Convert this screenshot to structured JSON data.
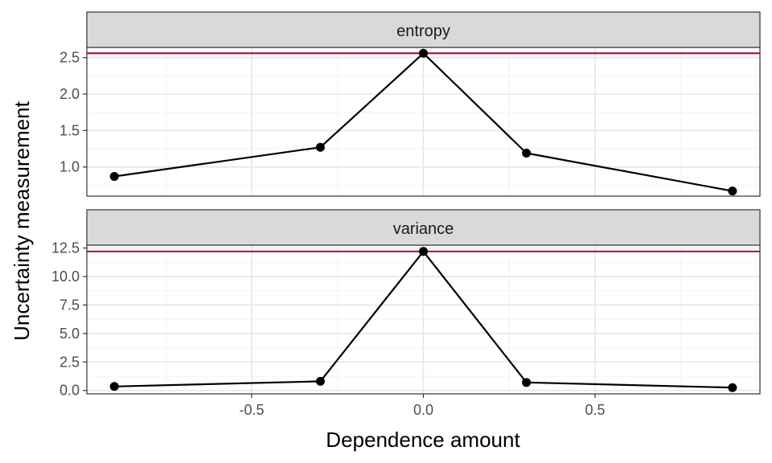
{
  "chart_data": {
    "type": "line",
    "xlabel": "Dependence amount",
    "ylabel": "Uncertainty measurement",
    "xlim": [
      -0.98,
      0.98
    ],
    "x_ticks": [
      -0.5,
      0.0,
      0.5
    ],
    "x_tick_labels": [
      "-0.5",
      "0.0",
      "0.5"
    ],
    "grid": true,
    "colors": {
      "line": "#000000",
      "point": "#000000",
      "reference_line": "#a8144f",
      "strip_fill": "#d9d9d9",
      "grid_major": "#e6e6e6",
      "grid_minor": "#f2f2f2",
      "panel_border": "#333333"
    },
    "panels": [
      {
        "strip_label": "entropy",
        "x": [
          -0.9,
          -0.3,
          0.0,
          0.3,
          0.9
        ],
        "y": [
          0.87,
          1.27,
          2.56,
          1.19,
          0.67
        ],
        "reference_y": 2.56,
        "ylim": [
          0.6,
          2.64
        ],
        "y_ticks": [
          1.0,
          1.5,
          2.0,
          2.5
        ],
        "y_tick_labels": [
          "1.0",
          "1.5",
          "2.0",
          "2.5"
        ]
      },
      {
        "strip_label": "variance",
        "x": [
          -0.9,
          -0.3,
          0.0,
          0.3,
          0.9
        ],
        "y": [
          0.35,
          0.8,
          12.2,
          0.7,
          0.25
        ],
        "reference_y": 12.2,
        "ylim": [
          -0.3,
          12.75
        ],
        "y_ticks": [
          0.0,
          2.5,
          5.0,
          7.5,
          10.0,
          12.5
        ],
        "y_tick_labels": [
          "0.0",
          "2.5",
          "5.0",
          "7.5",
          "10.0",
          "12.5"
        ]
      }
    ]
  }
}
